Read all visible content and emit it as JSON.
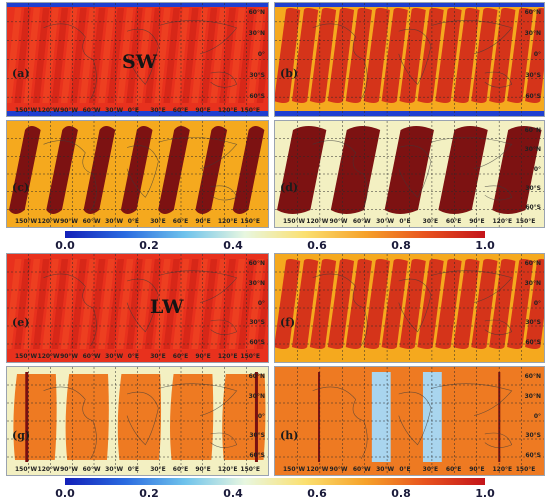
{
  "colors": {
    "band_blue": "#1f3fd0",
    "bg_red": "#e8311d",
    "bg_gold": "#f5a91e",
    "bg_cream": "#f3f0c2",
    "bg_orange": "#ee7a22",
    "orbit_red": "#d2271a",
    "orbit_dark": "#7d1212",
    "orbit_light_blue": "#a9d5ee",
    "grid": "#2a2a2a",
    "colorbar_stops": [
      "#1320b8",
      "#2a6be0",
      "#6fc3ec",
      "#e8f7e0",
      "#fbe070",
      "#f6a22a",
      "#e8531e",
      "#c4141a"
    ]
  },
  "sections": {
    "sw": "SW",
    "lw": "LW"
  },
  "colorbars": {
    "top": {
      "ticks": [
        "0.0",
        "0.2",
        "0.4",
        "0.6",
        "0.8",
        "1.0"
      ]
    },
    "bottom": {
      "ticks": [
        "0.0",
        "0.2",
        "0.4",
        "0.6",
        "0.8",
        "1.0"
      ]
    }
  },
  "lon_labels": [
    "150°W",
    "120°W",
    "90°W",
    "60°W",
    "30°W",
    "0°E",
    "30°E",
    "60°E",
    "90°E",
    "120°E",
    "150°E"
  ],
  "lat_labels": [
    "60°N",
    "30°N",
    "0°",
    "30°S",
    "60°S"
  ],
  "panels": [
    {
      "label": "(a)",
      "bg": "bg_red",
      "orbit_color": "bg_red",
      "style": "dense",
      "show_lon": true,
      "show_lat": true
    },
    {
      "label": "(b)",
      "bg": "bg_gold",
      "orbit_color": "orbit_red",
      "style": "swaths",
      "show_lon": false,
      "show_lat": true
    },
    {
      "label": "(c)",
      "bg": "bg_gold",
      "orbit_color": "orbit_dark",
      "style": "tracks",
      "show_lon": true,
      "show_lat": false
    },
    {
      "label": "(d)",
      "bg": "bg_cream",
      "orbit_color": "orbit_dark",
      "style": "tracks_wide",
      "show_lon": true,
      "show_lat": true
    },
    {
      "label": "(e)",
      "bg": "bg_red",
      "orbit_color": "orbit_red",
      "style": "dense",
      "show_lon": true,
      "show_lat": true
    },
    {
      "label": "(f)",
      "bg": "bg_gold",
      "orbit_color": "orbit_red",
      "style": "swaths",
      "show_lon": false,
      "show_lat": true
    },
    {
      "label": "(g)",
      "bg": "bg_cream",
      "orbit_color": "bg_orange",
      "style": "blocks",
      "show_lon": true,
      "show_lat": true
    },
    {
      "label": "(h)",
      "bg": "bg_orange",
      "orbit_color": "orbit_light_blue",
      "style": "gaps",
      "show_lon": true,
      "show_lat": true
    }
  ]
}
